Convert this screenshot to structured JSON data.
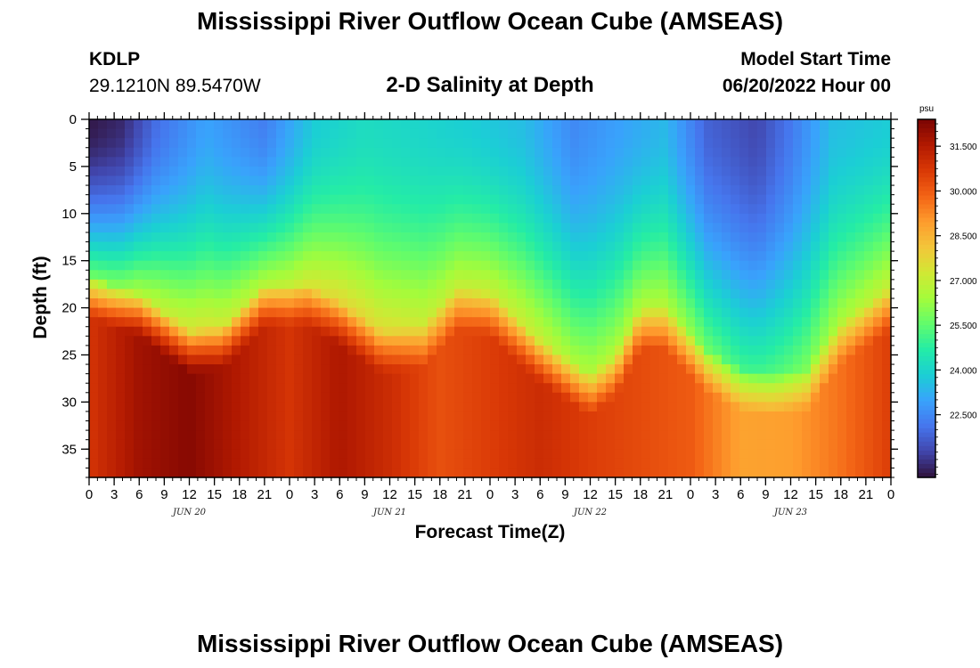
{
  "header": {
    "title": "Mississippi River Outflow Ocean Cube (AMSEAS)",
    "station": "KDLP",
    "coords": "29.1210N  89.5470W",
    "subtitle": "2-D Salinity at Depth",
    "start_label": "Model Start Time",
    "start_value": "06/20/2022 Hour 00"
  },
  "footer": {
    "title": "Mississippi River Outflow Ocean Cube (AMSEAS)"
  },
  "chart_data": {
    "type": "heatmap",
    "title": "2-D Salinity at Depth",
    "xlabel": "Forecast Time(Z)",
    "ylabel": "Depth (ft)",
    "x_range_hours": [
      0,
      96
    ],
    "x_tick_labels": [
      "0",
      "3",
      "6",
      "9",
      "12",
      "15",
      "18",
      "21",
      "0",
      "3",
      "6",
      "9",
      "12",
      "15",
      "18",
      "21",
      "0",
      "3",
      "6",
      "9",
      "12",
      "15",
      "18",
      "21",
      "0",
      "3",
      "6",
      "9",
      "12",
      "15",
      "18",
      "21",
      "0"
    ],
    "day_labels": [
      "JUN 20",
      "JUN 21",
      "JUN 22",
      "JUN 23"
    ],
    "y_range_ft": [
      0,
      38
    ],
    "y_ticks": [
      0,
      5,
      10,
      15,
      20,
      25,
      30,
      35
    ],
    "y_tick_labels": [
      "0",
      "5",
      "10",
      "15",
      "20",
      "25",
      "30",
      "35"
    ],
    "colorbar": {
      "unit": "psu",
      "ticks": [
        22.5,
        24.0,
        25.5,
        27.0,
        28.5,
        30.0,
        31.5
      ],
      "tick_labels": [
        "22.500",
        "24.000",
        "25.500",
        "27.000",
        "28.500",
        "30.000",
        "31.500"
      ],
      "range": [
        20.4,
        32.4
      ],
      "colors": [
        "#30123b",
        "#4145ab",
        "#4675ed",
        "#39a2fc",
        "#1bcfd4",
        "#24eca6",
        "#61fc6c",
        "#a4fc3b",
        "#d1e834",
        "#f3c63a",
        "#fe9b2d",
        "#f36315",
        "#d93806",
        "#b11901",
        "#7a0403"
      ]
    },
    "interface_depth_ft": [
      {
        "hour": 0,
        "depth": 16.5
      },
      {
        "hour": 2.5,
        "depth": 17.5
      },
      {
        "hour": 6,
        "depth": 18.5
      },
      {
        "hour": 9,
        "depth": 20.5
      },
      {
        "hour": 12,
        "depth": 22.5
      },
      {
        "hour": 16,
        "depth": 22.0
      },
      {
        "hour": 21,
        "depth": 17.5
      },
      {
        "hour": 26,
        "depth": 17.5
      },
      {
        "hour": 30,
        "depth": 19.5
      },
      {
        "hour": 35,
        "depth": 22.5
      },
      {
        "hour": 40,
        "depth": 22.0
      },
      {
        "hour": 44,
        "depth": 18.0
      },
      {
        "hour": 48,
        "depth": 18.5
      },
      {
        "hour": 54,
        "depth": 23.5
      },
      {
        "hour": 60,
        "depth": 27.0
      },
      {
        "hour": 63,
        "depth": 25.0
      },
      {
        "hour": 66,
        "depth": 20.0
      },
      {
        "hour": 69,
        "depth": 20.0
      },
      {
        "hour": 74,
        "depth": 24.5
      },
      {
        "hour": 78,
        "depth": 26.5
      },
      {
        "hour": 82,
        "depth": 27.0
      },
      {
        "hour": 86,
        "depth": 26.5
      },
      {
        "hour": 90,
        "depth": 21.5
      },
      {
        "hour": 96,
        "depth": 18.0
      }
    ],
    "surface_salinity_psu": [
      {
        "hour": 0,
        "value": 20.5
      },
      {
        "hour": 4,
        "value": 20.8
      },
      {
        "hour": 8,
        "value": 22.0
      },
      {
        "hour": 14,
        "value": 23.0
      },
      {
        "hour": 21,
        "value": 22.3
      },
      {
        "hour": 27,
        "value": 23.8
      },
      {
        "hour": 33,
        "value": 24.2
      },
      {
        "hour": 40,
        "value": 24.0
      },
      {
        "hour": 46,
        "value": 23.8
      },
      {
        "hour": 52,
        "value": 23.5
      },
      {
        "hour": 58,
        "value": 22.5
      },
      {
        "hour": 64,
        "value": 23.0
      },
      {
        "hour": 69,
        "value": 23.4
      },
      {
        "hour": 74,
        "value": 21.8
      },
      {
        "hour": 80,
        "value": 21.3
      },
      {
        "hour": 84,
        "value": 22.2
      },
      {
        "hour": 89,
        "value": 23.5
      },
      {
        "hour": 96,
        "value": 23.8
      }
    ],
    "bottom_salinity_psu": [
      {
        "hour": 0,
        "value": 30.8
      },
      {
        "hour": 6,
        "value": 31.8
      },
      {
        "hour": 12,
        "value": 32.2
      },
      {
        "hour": 18,
        "value": 31.5
      },
      {
        "hour": 24,
        "value": 30.8
      },
      {
        "hour": 30,
        "value": 31.6
      },
      {
        "hour": 36,
        "value": 31.0
      },
      {
        "hour": 42,
        "value": 30.2
      },
      {
        "hour": 48,
        "value": 30.6
      },
      {
        "hour": 54,
        "value": 31.0
      },
      {
        "hour": 60,
        "value": 30.6
      },
      {
        "hour": 66,
        "value": 30.3
      },
      {
        "hour": 72,
        "value": 30.0
      },
      {
        "hour": 78,
        "value": 28.8
      },
      {
        "hour": 84,
        "value": 28.9
      },
      {
        "hour": 90,
        "value": 29.6
      },
      {
        "hour": 96,
        "value": 30.6
      }
    ]
  }
}
